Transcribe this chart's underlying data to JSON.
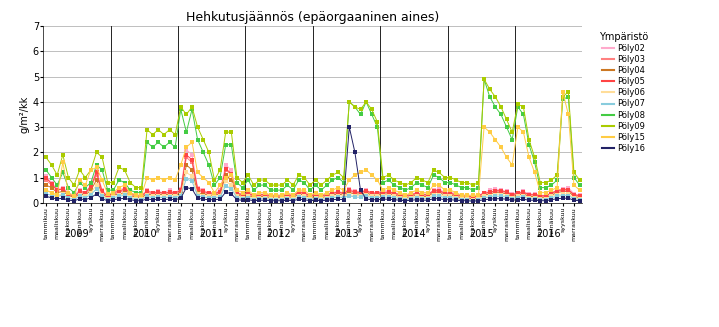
{
  "title": "Hehkutusjäännös (epäorgaaninen aines)",
  "ylabel": "g/m²/kk",
  "ylim": [
    0,
    7
  ],
  "yticks": [
    0,
    1,
    2,
    3,
    4,
    5,
    6,
    7
  ],
  "legend_title": "Ympäristö",
  "series_names": [
    "Pöly02",
    "Pöly03",
    "Pöly04",
    "Pöly05",
    "Pöly06",
    "Pöly07",
    "Pöly08",
    "Pöly09",
    "Pöly15",
    "Pöly16"
  ],
  "series_colors": [
    "#ffaacc",
    "#ff8080",
    "#cc7722",
    "#ff4444",
    "#ffdd99",
    "#88ccdd",
    "#44cc44",
    "#aacc00",
    "#ffcc44",
    "#222266"
  ],
  "data": {
    "Pöly02": [
      1.05,
      0.8,
      0.55,
      0.6,
      0.4,
      0.3,
      0.5,
      0.4,
      0.7,
      1.3,
      0.5,
      0.3,
      0.4,
      0.5,
      0.6,
      0.4,
      0.3,
      0.3,
      0.5,
      0.4,
      0.45,
      0.4,
      0.5,
      0.4,
      0.55,
      2.1,
      1.9,
      0.6,
      0.5,
      0.4,
      0.4,
      0.5,
      1.5,
      1.3,
      0.4,
      0.35,
      0.4,
      0.3,
      0.35,
      0.35,
      0.3,
      0.3,
      0.3,
      0.35,
      0.3,
      0.5,
      0.4,
      0.3,
      0.35,
      0.3,
      0.35,
      0.4,
      0.45,
      0.4,
      0.55,
      0.45,
      0.45,
      0.5,
      0.4,
      0.4,
      0.5,
      0.45,
      0.4,
      0.35,
      0.3,
      0.35,
      0.4,
      0.35,
      0.35,
      0.5,
      0.55,
      0.4,
      0.45,
      0.35,
      0.3,
      0.3,
      0.25,
      0.3,
      0.4,
      0.5,
      0.55,
      0.5,
      0.45,
      0.35,
      0.4,
      0.45,
      0.35,
      0.35,
      0.3,
      0.3,
      0.4,
      0.5,
      0.55,
      0.6,
      0.35,
      0.3
    ],
    "Pöly03": [
      0.9,
      0.7,
      0.5,
      0.55,
      0.35,
      0.25,
      0.4,
      0.35,
      0.6,
      1.1,
      0.4,
      0.25,
      0.35,
      0.4,
      0.5,
      0.35,
      0.25,
      0.25,
      0.4,
      0.35,
      0.4,
      0.35,
      0.4,
      0.35,
      0.45,
      1.8,
      1.6,
      0.5,
      0.4,
      0.35,
      0.35,
      0.4,
      1.3,
      1.1,
      0.35,
      0.3,
      0.35,
      0.25,
      0.3,
      0.3,
      0.25,
      0.25,
      0.25,
      0.3,
      0.25,
      0.4,
      0.35,
      0.25,
      0.3,
      0.25,
      0.3,
      0.35,
      0.4,
      0.35,
      0.45,
      0.4,
      0.4,
      0.45,
      0.35,
      0.35,
      0.4,
      0.4,
      0.35,
      0.3,
      0.25,
      0.3,
      0.35,
      0.3,
      0.3,
      0.45,
      0.45,
      0.35,
      0.35,
      0.3,
      0.25,
      0.25,
      0.2,
      0.25,
      0.35,
      0.4,
      0.45,
      0.45,
      0.4,
      0.3,
      0.35,
      0.4,
      0.3,
      0.3,
      0.25,
      0.25,
      0.35,
      0.45,
      0.5,
      0.5,
      0.3,
      0.25
    ],
    "Pöly04": [
      0.7,
      0.6,
      0.4,
      0.45,
      0.3,
      0.2,
      0.35,
      0.3,
      0.5,
      0.9,
      0.35,
      0.2,
      0.3,
      0.35,
      0.4,
      0.3,
      0.2,
      0.2,
      0.35,
      0.3,
      0.35,
      0.3,
      0.35,
      0.3,
      0.4,
      1.5,
      1.3,
      0.4,
      0.35,
      0.3,
      0.3,
      0.35,
      1.1,
      0.9,
      0.3,
      0.25,
      0.3,
      0.2,
      0.25,
      0.25,
      0.2,
      0.2,
      0.2,
      0.25,
      0.2,
      0.35,
      0.3,
      0.2,
      0.25,
      0.2,
      0.25,
      0.3,
      0.35,
      0.3,
      0.4,
      0.35,
      0.35,
      0.4,
      0.3,
      0.3,
      0.35,
      0.35,
      0.3,
      0.25,
      0.2,
      0.25,
      0.3,
      0.25,
      0.25,
      0.4,
      0.4,
      0.3,
      0.3,
      0.25,
      0.2,
      0.2,
      0.15,
      0.2,
      0.3,
      0.35,
      0.4,
      0.4,
      0.35,
      0.25,
      0.3,
      0.35,
      0.25,
      0.25,
      0.2,
      0.2,
      0.3,
      0.4,
      0.45,
      0.45,
      0.25,
      0.2
    ],
    "Pöly05": [
      1.0,
      0.75,
      0.5,
      0.55,
      0.35,
      0.25,
      0.45,
      0.4,
      0.65,
      1.2,
      0.45,
      0.25,
      0.4,
      0.45,
      0.55,
      0.4,
      0.28,
      0.28,
      0.45,
      0.4,
      0.42,
      0.38,
      0.42,
      0.38,
      0.5,
      1.9,
      1.7,
      0.55,
      0.45,
      0.38,
      0.38,
      0.42,
      1.35,
      1.15,
      0.38,
      0.32,
      0.38,
      0.28,
      0.32,
      0.32,
      0.28,
      0.28,
      0.28,
      0.32,
      0.28,
      0.42,
      0.38,
      0.28,
      0.32,
      0.28,
      0.32,
      0.38,
      0.42,
      0.38,
      0.5,
      0.42,
      0.42,
      0.48,
      0.38,
      0.38,
      0.42,
      0.42,
      0.38,
      0.32,
      0.28,
      0.32,
      0.38,
      0.32,
      0.32,
      0.48,
      0.48,
      0.38,
      0.38,
      0.32,
      0.28,
      0.28,
      0.22,
      0.28,
      0.38,
      0.42,
      0.48,
      0.48,
      0.42,
      0.32,
      0.38,
      0.42,
      0.32,
      0.32,
      0.28,
      0.28,
      0.38,
      0.48,
      0.52,
      0.52,
      0.32,
      0.28
    ],
    "Pöly06": [
      0.5,
      0.4,
      0.3,
      0.35,
      0.2,
      0.15,
      0.3,
      0.25,
      0.4,
      0.7,
      0.3,
      0.15,
      0.25,
      0.3,
      0.35,
      0.25,
      0.15,
      0.15,
      0.3,
      0.25,
      0.28,
      0.25,
      0.28,
      0.25,
      0.32,
      1.2,
      1.05,
      0.35,
      0.28,
      0.25,
      0.25,
      0.28,
      0.85,
      0.7,
      0.25,
      0.2,
      0.25,
      0.15,
      0.2,
      0.2,
      0.15,
      0.15,
      0.15,
      0.2,
      0.15,
      0.28,
      0.25,
      0.15,
      0.2,
      0.15,
      0.2,
      0.25,
      0.28,
      0.25,
      0.32,
      0.28,
      0.28,
      0.32,
      0.25,
      0.25,
      0.28,
      0.28,
      0.25,
      0.2,
      0.15,
      0.2,
      0.25,
      0.2,
      0.2,
      0.32,
      0.32,
      0.25,
      0.25,
      0.2,
      0.15,
      0.15,
      0.1,
      0.15,
      0.25,
      0.28,
      0.32,
      0.32,
      0.28,
      0.2,
      0.25,
      0.28,
      0.2,
      0.2,
      0.15,
      0.15,
      0.25,
      0.32,
      0.35,
      0.35,
      0.2,
      0.15
    ],
    "Pöly07": [
      0.35,
      0.3,
      0.25,
      0.3,
      0.18,
      0.12,
      0.25,
      0.2,
      0.32,
      0.55,
      0.25,
      0.12,
      0.2,
      0.25,
      0.3,
      0.2,
      0.12,
      0.12,
      0.25,
      0.2,
      0.22,
      0.2,
      0.22,
      0.2,
      0.28,
      0.95,
      0.85,
      0.28,
      0.22,
      0.2,
      0.2,
      0.22,
      0.68,
      0.55,
      0.2,
      0.16,
      0.2,
      0.12,
      0.16,
      0.16,
      0.12,
      0.12,
      0.12,
      0.16,
      0.12,
      0.22,
      0.2,
      0.12,
      0.16,
      0.12,
      0.16,
      0.2,
      0.22,
      0.2,
      0.28,
      0.22,
      0.22,
      0.26,
      0.2,
      0.2,
      0.22,
      0.22,
      0.2,
      0.16,
      0.12,
      0.16,
      0.2,
      0.16,
      0.16,
      0.26,
      0.26,
      0.2,
      0.2,
      0.16,
      0.12,
      0.12,
      0.08,
      0.12,
      0.2,
      0.22,
      0.26,
      0.26,
      0.22,
      0.16,
      0.2,
      0.22,
      0.16,
      0.16,
      0.12,
      0.12,
      0.2,
      0.26,
      0.28,
      0.28,
      0.16,
      0.12
    ],
    "Pöly08": [
      1.3,
      1.0,
      0.7,
      1.2,
      0.6,
      0.4,
      0.8,
      0.6,
      0.8,
      1.5,
      1.3,
      0.5,
      0.5,
      0.9,
      0.8,
      0.5,
      0.4,
      0.4,
      2.4,
      2.2,
      2.4,
      2.2,
      2.4,
      2.2,
      3.7,
      2.8,
      3.7,
      2.5,
      2.0,
      1.5,
      0.7,
      1.0,
      2.3,
      2.3,
      0.8,
      0.6,
      0.9,
      0.5,
      0.7,
      0.7,
      0.5,
      0.5,
      0.5,
      0.7,
      0.5,
      0.9,
      0.8,
      0.5,
      0.7,
      0.5,
      0.7,
      0.9,
      1.0,
      0.8,
      4.0,
      3.8,
      3.5,
      4.0,
      3.5,
      3.0,
      0.8,
      0.9,
      0.7,
      0.6,
      0.5,
      0.6,
      0.8,
      0.7,
      0.6,
      1.1,
      1.0,
      0.8,
      0.8,
      0.7,
      0.6,
      0.6,
      0.5,
      0.6,
      4.9,
      4.2,
      3.8,
      3.5,
      3.0,
      2.5,
      3.8,
      3.5,
      2.3,
      1.6,
      0.6,
      0.6,
      0.7,
      0.9,
      4.1,
      4.2,
      1.0,
      0.7
    ],
    "Pöly09": [
      1.8,
      1.5,
      1.1,
      1.9,
      1.0,
      0.7,
      1.3,
      1.0,
      1.3,
      2.0,
      1.8,
      0.8,
      0.8,
      1.4,
      1.3,
      0.8,
      0.6,
      0.6,
      2.9,
      2.7,
      2.9,
      2.7,
      2.9,
      2.7,
      3.8,
      3.5,
      3.8,
      3.0,
      2.5,
      2.0,
      0.9,
      1.3,
      2.8,
      2.8,
      1.0,
      0.8,
      1.1,
      0.7,
      0.9,
      0.9,
      0.7,
      0.7,
      0.7,
      0.9,
      0.7,
      1.1,
      1.0,
      0.7,
      0.9,
      0.7,
      0.9,
      1.1,
      1.2,
      1.0,
      4.0,
      3.8,
      3.7,
      4.0,
      3.7,
      3.2,
      1.0,
      1.1,
      0.9,
      0.8,
      0.7,
      0.8,
      1.0,
      0.9,
      0.8,
      1.3,
      1.2,
      1.0,
      1.0,
      0.9,
      0.8,
      0.8,
      0.7,
      0.8,
      4.9,
      4.5,
      4.2,
      3.8,
      3.3,
      2.8,
      3.9,
      3.8,
      2.5,
      1.8,
      0.8,
      0.8,
      0.9,
      1.1,
      4.2,
      4.4,
      1.2,
      0.9
    ],
    "Pöly15": [
      0.5,
      0.4,
      0.3,
      1.6,
      0.4,
      0.25,
      0.9,
      0.7,
      1.3,
      1.4,
      0.9,
      0.35,
      0.4,
      0.6,
      0.7,
      0.4,
      0.3,
      0.3,
      1.0,
      0.9,
      1.0,
      0.9,
      1.0,
      0.9,
      1.5,
      2.2,
      2.4,
      1.2,
      1.0,
      0.8,
      0.4,
      0.7,
      1.0,
      1.1,
      0.5,
      0.4,
      0.5,
      0.3,
      0.4,
      0.4,
      0.3,
      0.3,
      0.3,
      0.4,
      0.3,
      0.5,
      0.5,
      0.3,
      0.4,
      0.3,
      0.4,
      0.5,
      0.6,
      0.5,
      0.9,
      1.1,
      1.2,
      1.3,
      1.1,
      0.9,
      0.5,
      0.6,
      0.5,
      0.4,
      0.3,
      0.4,
      0.5,
      0.4,
      0.4,
      0.7,
      0.7,
      0.5,
      0.5,
      0.4,
      0.3,
      0.3,
      0.3,
      0.3,
      3.0,
      2.8,
      2.5,
      2.2,
      1.8,
      1.5,
      3.0,
      2.8,
      1.8,
      1.2,
      0.4,
      0.4,
      0.5,
      0.6,
      4.4,
      3.5,
      0.7,
      0.5
    ],
    "Pöly16": [
      0.25,
      0.2,
      0.15,
      0.18,
      0.1,
      0.08,
      0.15,
      0.12,
      0.2,
      0.35,
      0.15,
      0.08,
      0.12,
      0.15,
      0.18,
      0.12,
      0.08,
      0.08,
      0.15,
      0.12,
      0.14,
      0.12,
      0.14,
      0.12,
      0.18,
      0.6,
      0.55,
      0.18,
      0.14,
      0.12,
      0.12,
      0.14,
      0.42,
      0.35,
      0.12,
      0.1,
      0.12,
      0.08,
      0.1,
      0.1,
      0.08,
      0.08,
      0.08,
      0.1,
      0.08,
      0.14,
      0.12,
      0.08,
      0.1,
      0.08,
      0.1,
      0.12,
      0.14,
      0.12,
      3.0,
      2.0,
      0.5,
      0.15,
      0.12,
      0.12,
      0.14,
      0.14,
      0.12,
      0.1,
      0.08,
      0.1,
      0.12,
      0.1,
      0.1,
      0.16,
      0.16,
      0.12,
      0.12,
      0.1,
      0.08,
      0.08,
      0.06,
      0.08,
      0.12,
      0.14,
      0.16,
      0.16,
      0.14,
      0.1,
      0.12,
      0.14,
      0.1,
      0.1,
      0.08,
      0.08,
      0.12,
      0.16,
      0.18,
      0.18,
      0.1,
      0.08
    ]
  }
}
